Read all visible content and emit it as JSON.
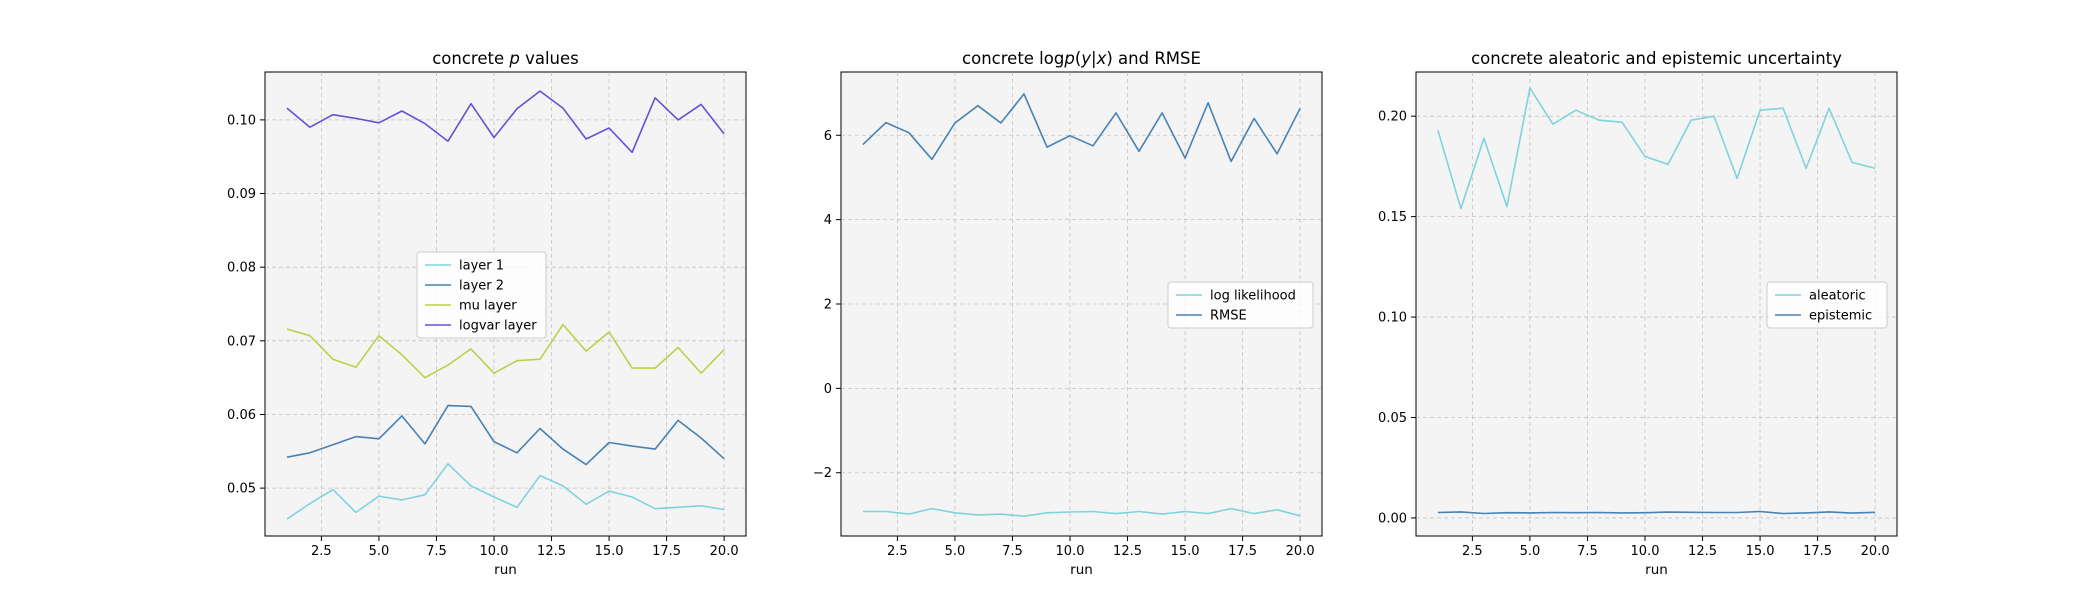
{
  "chart_data": [
    {
      "type": "line",
      "title": "concrete p values",
      "title_parts": [
        "concrete ",
        "p",
        " values"
      ],
      "xlabel": "run",
      "ylabel": "",
      "xlim": [
        0.05,
        20.95
      ],
      "ylim": [
        0.0435,
        0.1065
      ],
      "xticks": [
        "2.5",
        "5.0",
        "7.5",
        "10.0",
        "12.5",
        "15.0",
        "17.5",
        "20.0"
      ],
      "yticks": [
        "0.05",
        "0.06",
        "0.07",
        "0.08",
        "0.09",
        "0.10"
      ],
      "grid": true,
      "legend_position": "center",
      "x": [
        1,
        2,
        3,
        4,
        5,
        6,
        7,
        8,
        9,
        10,
        11,
        12,
        13,
        14,
        15,
        16,
        17,
        18,
        19,
        20
      ],
      "series": [
        {
          "name": "layer 1",
          "color": "#7fd3dd",
          "values": [
            0.0458,
            0.0479,
            0.0498,
            0.0467,
            0.0489,
            0.0484,
            0.0491,
            0.0533,
            0.0503,
            0.0488,
            0.0474,
            0.0517,
            0.0503,
            0.0478,
            0.0496,
            0.0488,
            0.0472,
            0.0474,
            0.0476,
            0.0471
          ]
        },
        {
          "name": "layer 2",
          "color": "#4682b4",
          "values": [
            0.0542,
            0.0548,
            0.0559,
            0.057,
            0.0567,
            0.0598,
            0.056,
            0.0612,
            0.0611,
            0.0563,
            0.0548,
            0.0581,
            0.0553,
            0.0532,
            0.0562,
            0.0557,
            0.0553,
            0.0592,
            0.0568,
            0.054
          ]
        },
        {
          "name": "mu layer",
          "color": "#bcd04a",
          "values": [
            0.0716,
            0.0707,
            0.0675,
            0.0664,
            0.0707,
            0.0681,
            0.065,
            0.0667,
            0.0689,
            0.0656,
            0.0673,
            0.0675,
            0.0722,
            0.0686,
            0.0712,
            0.0663,
            0.0663,
            0.0691,
            0.0656,
            0.0688
          ]
        },
        {
          "name": "logvar layer",
          "color": "#6a4fd6",
          "values": [
            0.1016,
            0.099,
            0.1007,
            0.1002,
            0.0996,
            0.1012,
            0.0995,
            0.0971,
            0.1022,
            0.0976,
            0.1015,
            0.1039,
            0.1016,
            0.0974,
            0.0989,
            0.0956,
            0.103,
            0.1,
            0.1021,
            0.0981
          ]
        }
      ]
    },
    {
      "type": "line",
      "title": "concrete logp(y|x) and RMSE",
      "title_parts": [
        "concrete log",
        "p",
        "(",
        "y",
        "|",
        "x",
        ") and RMSE"
      ],
      "xlabel": "run",
      "ylabel": "",
      "xlim": [
        0.05,
        20.95
      ],
      "ylim": [
        -3.5,
        7.5
      ],
      "xticks": [
        "2.5",
        "5.0",
        "7.5",
        "10.0",
        "12.5",
        "15.0",
        "17.5",
        "20.0"
      ],
      "yticks": [
        "−2",
        "0",
        "2",
        "4",
        "6"
      ],
      "grid": true,
      "legend_position": "center-right",
      "x": [
        1,
        2,
        3,
        4,
        5,
        6,
        7,
        8,
        9,
        10,
        11,
        12,
        13,
        14,
        15,
        16,
        17,
        18,
        19,
        20
      ],
      "series": [
        {
          "name": "log likelihood",
          "color": "#7fd3dd",
          "values": [
            -2.92,
            -2.92,
            -2.98,
            -2.85,
            -2.95,
            -3.0,
            -2.98,
            -3.03,
            -2.95,
            -2.93,
            -2.92,
            -2.97,
            -2.92,
            -2.98,
            -2.92,
            -2.97,
            -2.85,
            -2.97,
            -2.88,
            -3.02
          ]
        },
        {
          "name": "RMSE",
          "color": "#4682b4",
          "values": [
            5.78,
            6.3,
            6.06,
            5.43,
            6.29,
            6.7,
            6.29,
            6.98,
            5.72,
            5.99,
            5.75,
            6.53,
            5.62,
            6.53,
            5.46,
            6.77,
            5.38,
            6.4,
            5.56,
            6.64
          ]
        }
      ]
    },
    {
      "type": "line",
      "title": "concrete aleatoric and epistemic uncertainty",
      "xlabel": "run",
      "ylabel": "",
      "xlim": [
        0.05,
        20.95
      ],
      "ylim": [
        -0.009,
        0.222
      ],
      "xticks": [
        "2.5",
        "5.0",
        "7.5",
        "10.0",
        "12.5",
        "15.0",
        "17.5",
        "20.0"
      ],
      "yticks": [
        "0.00",
        "0.05",
        "0.10",
        "0.15",
        "0.20"
      ],
      "grid": true,
      "legend_position": "center-right",
      "x": [
        1,
        2,
        3,
        4,
        5,
        6,
        7,
        8,
        9,
        10,
        11,
        12,
        13,
        14,
        15,
        16,
        17,
        18,
        19,
        20
      ],
      "series": [
        {
          "name": "aleatoric",
          "color": "#7fd3dd",
          "values": [
            0.193,
            0.154,
            0.189,
            0.155,
            0.214,
            0.196,
            0.203,
            0.198,
            0.197,
            0.18,
            0.176,
            0.198,
            0.2,
            0.169,
            0.203,
            0.204,
            0.174,
            0.204,
            0.177,
            0.174
          ]
        },
        {
          "name": "epistemic",
          "color": "#4682b4",
          "values": [
            0.0027,
            0.003,
            0.0022,
            0.0026,
            0.0025,
            0.0027,
            0.0026,
            0.0027,
            0.0025,
            0.0026,
            0.0029,
            0.0028,
            0.0027,
            0.0027,
            0.0032,
            0.0022,
            0.0025,
            0.003,
            0.0024,
            0.0028
          ]
        }
      ]
    }
  ]
}
